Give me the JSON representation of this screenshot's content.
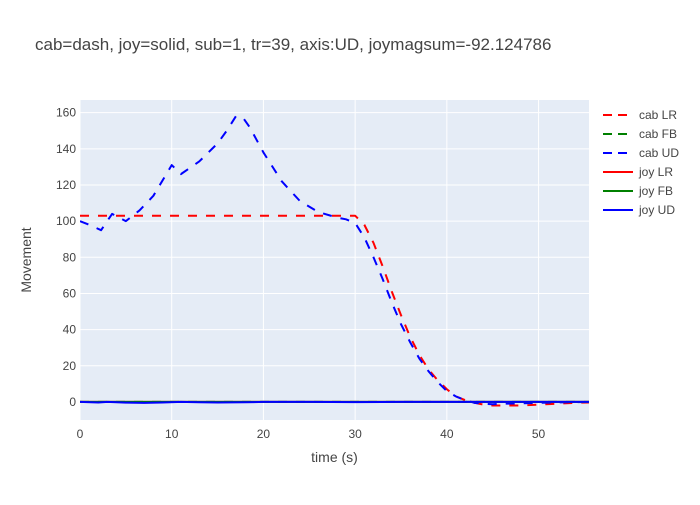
{
  "chart_data": {
    "type": "line",
    "title": "cab=dash, joy=solid, sub=1, tr=39, axis:UD, joymagsum=-92.124786",
    "xlabel": "time (s)",
    "ylabel": "Movement",
    "xlim": [
      0,
      55.5
    ],
    "ylim": [
      -10,
      167
    ],
    "xticks": [
      0,
      10,
      20,
      30,
      40,
      50
    ],
    "yticks": [
      0,
      20,
      40,
      60,
      80,
      100,
      120,
      140,
      160
    ],
    "grid": true,
    "legend_position": "right",
    "series": [
      {
        "name": "cab LR",
        "color": "#ff0000",
        "dash": "dash",
        "x": [
          0,
          2,
          4,
          6,
          8,
          10,
          15,
          20,
          25,
          29,
          30,
          31,
          32,
          33,
          34,
          35,
          36,
          37,
          38,
          39,
          40,
          41,
          42,
          43,
          44,
          45,
          46,
          48,
          50,
          52,
          54,
          55.5
        ],
        "y": [
          103,
          103,
          103,
          103,
          103,
          103,
          103,
          103,
          103,
          103,
          103,
          98,
          88,
          75,
          61,
          48,
          36,
          26,
          18,
          12,
          7,
          3,
          1,
          -0.5,
          -1.5,
          -2,
          -2,
          -2,
          -1.5,
          -1,
          -0.5,
          -0.3
        ]
      },
      {
        "name": "cab FB",
        "color": "#008000",
        "dash": "dash",
        "x": [
          0,
          55.5
        ],
        "y": [
          0,
          0
        ]
      },
      {
        "name": "cab UD",
        "color": "#0000ff",
        "dash": "dash",
        "x": [
          0,
          1,
          2.3,
          3.5,
          5,
          6.5,
          8,
          10,
          11,
          13,
          15,
          16,
          17,
          17.8,
          18.5,
          20,
          22,
          24,
          26,
          28,
          29,
          30,
          31,
          32,
          33,
          34,
          35,
          36,
          37,
          38,
          39,
          40,
          41,
          42,
          43,
          44,
          45,
          46,
          48,
          50,
          52,
          54,
          55.5
        ],
        "y": [
          100,
          98,
          95,
          104,
          100,
          106,
          114,
          131,
          126,
          133,
          143,
          150,
          158,
          157,
          152,
          138,
          122,
          111,
          105,
          102,
          101,
          99,
          91,
          80,
          68,
          55,
          43,
          33,
          24,
          17,
          11,
          6,
          3,
          1,
          -0.5,
          -1,
          -1.3,
          -1,
          -0.8,
          -0.5,
          -0.3,
          -0.1,
          0
        ]
      },
      {
        "name": "joy LR",
        "color": "#ff0000",
        "dash": "solid",
        "x": [
          0,
          55.5
        ],
        "y": [
          0,
          0
        ]
      },
      {
        "name": "joy FB",
        "color": "#008000",
        "dash": "solid",
        "x": [
          0,
          55.5
        ],
        "y": [
          0,
          0
        ]
      },
      {
        "name": "joy UD",
        "color": "#0000ff",
        "dash": "solid",
        "x": [
          0,
          2,
          3,
          4,
          5,
          7,
          9,
          11,
          13,
          15,
          18,
          20,
          25,
          30,
          35,
          40,
          45,
          50,
          55.5
        ],
        "y": [
          0,
          -0.3,
          0,
          -0.2,
          -0.4,
          -0.5,
          -0.3,
          0,
          -0.2,
          -0.3,
          -0.2,
          0,
          0,
          -0.1,
          0,
          0,
          0,
          0,
          0
        ]
      }
    ]
  }
}
